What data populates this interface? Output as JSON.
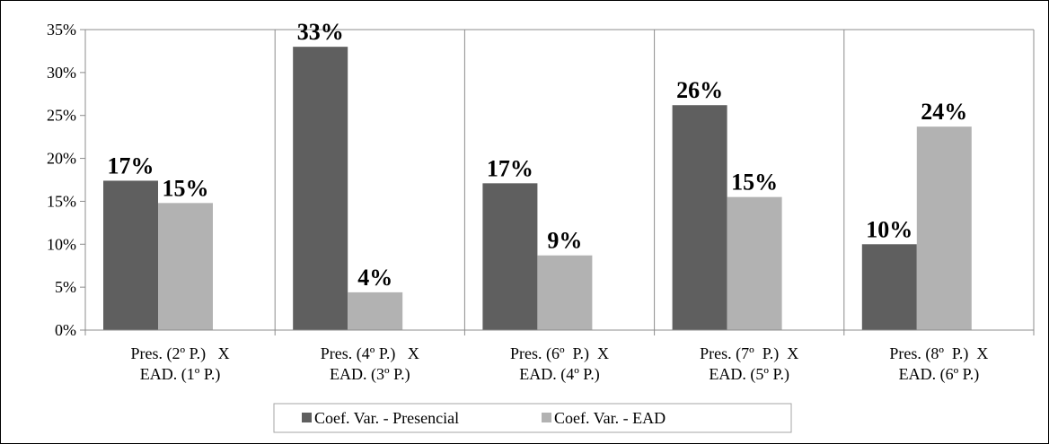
{
  "chart_data": {
    "type": "bar",
    "categories": [
      [
        "Pres. (2º P.)   X",
        "EAD. (1º P.)"
      ],
      [
        "Pres. (4º P.)   X",
        "EAD. (3º P.)"
      ],
      [
        "Pres. (6º  P.)  X",
        "EAD. (4º P.)"
      ],
      [
        "Pres. (7º  P.)  X",
        "EAD. (5º P.)"
      ],
      [
        "Pres. (8º  P.)  X",
        "EAD. (6º P.)"
      ]
    ],
    "series": [
      {
        "name": "Coef. Var. - Presencial",
        "color": "#5f5f5f",
        "values": [
          0.174,
          0.33,
          0.171,
          0.262,
          0.1
        ],
        "labels": [
          "17%",
          "33%",
          "17%",
          "26%",
          "10%"
        ]
      },
      {
        "name": "Coef. Var. - EAD",
        "color": "#b2b2b2",
        "values": [
          0.148,
          0.044,
          0.087,
          0.155,
          0.237
        ],
        "labels": [
          "15%",
          "4%",
          "9%",
          "15%",
          "24%"
        ]
      }
    ],
    "yticks": [
      "0%",
      "5%",
      "10%",
      "15%",
      "20%",
      "25%",
      "30%",
      "35%"
    ],
    "ylim": [
      0,
      0.35
    ],
    "ytick_step": 0.05,
    "grid": true,
    "grid_direction": "vertical",
    "legend": "bottom",
    "title": "",
    "xlabel": "",
    "ylabel": ""
  }
}
